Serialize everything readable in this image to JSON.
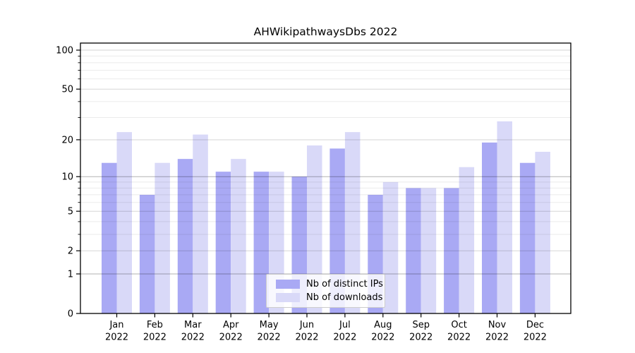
{
  "chart_data": {
    "type": "bar",
    "title": "AHWikipathwaysDbs 2022",
    "categories": [
      "Jan",
      "Feb",
      "Mar",
      "Apr",
      "May",
      "Jun",
      "Jul",
      "Aug",
      "Sep",
      "Oct",
      "Nov",
      "Dec"
    ],
    "x_year_label": "2022",
    "series": [
      {
        "name": "Nb of distinct IPs",
        "color": "#a9a9f4",
        "values": [
          13,
          7,
          14,
          11,
          11,
          10,
          17,
          7,
          8,
          8,
          19,
          13
        ]
      },
      {
        "name": "Nb of downloads",
        "color": "#d9d9f8",
        "values": [
          23,
          13,
          22,
          14,
          11,
          18,
          23,
          9,
          8,
          12,
          28,
          16
        ]
      }
    ],
    "y_axis": {
      "scale": "log10(1+value)",
      "ticks": [
        0,
        1,
        2,
        5,
        10,
        20,
        50,
        100
      ],
      "minor_ticks": [
        3,
        4,
        6,
        7,
        8,
        9,
        30,
        40,
        60,
        70,
        80,
        90
      ],
      "range": [
        0,
        100
      ]
    },
    "legend": {
      "position": "bottom-center",
      "entries": [
        "Nb of distinct IPs",
        "Nb of downloads"
      ]
    },
    "grid": "horizontal",
    "colors": {
      "background": "#ffffff",
      "axis": "#000000",
      "grid_minor": "rgba(0,0,0,0.08)",
      "grid_major": "rgba(0,0,0,0.16)",
      "grid_emphasis": "rgba(0,0,0,0.30)"
    }
  }
}
